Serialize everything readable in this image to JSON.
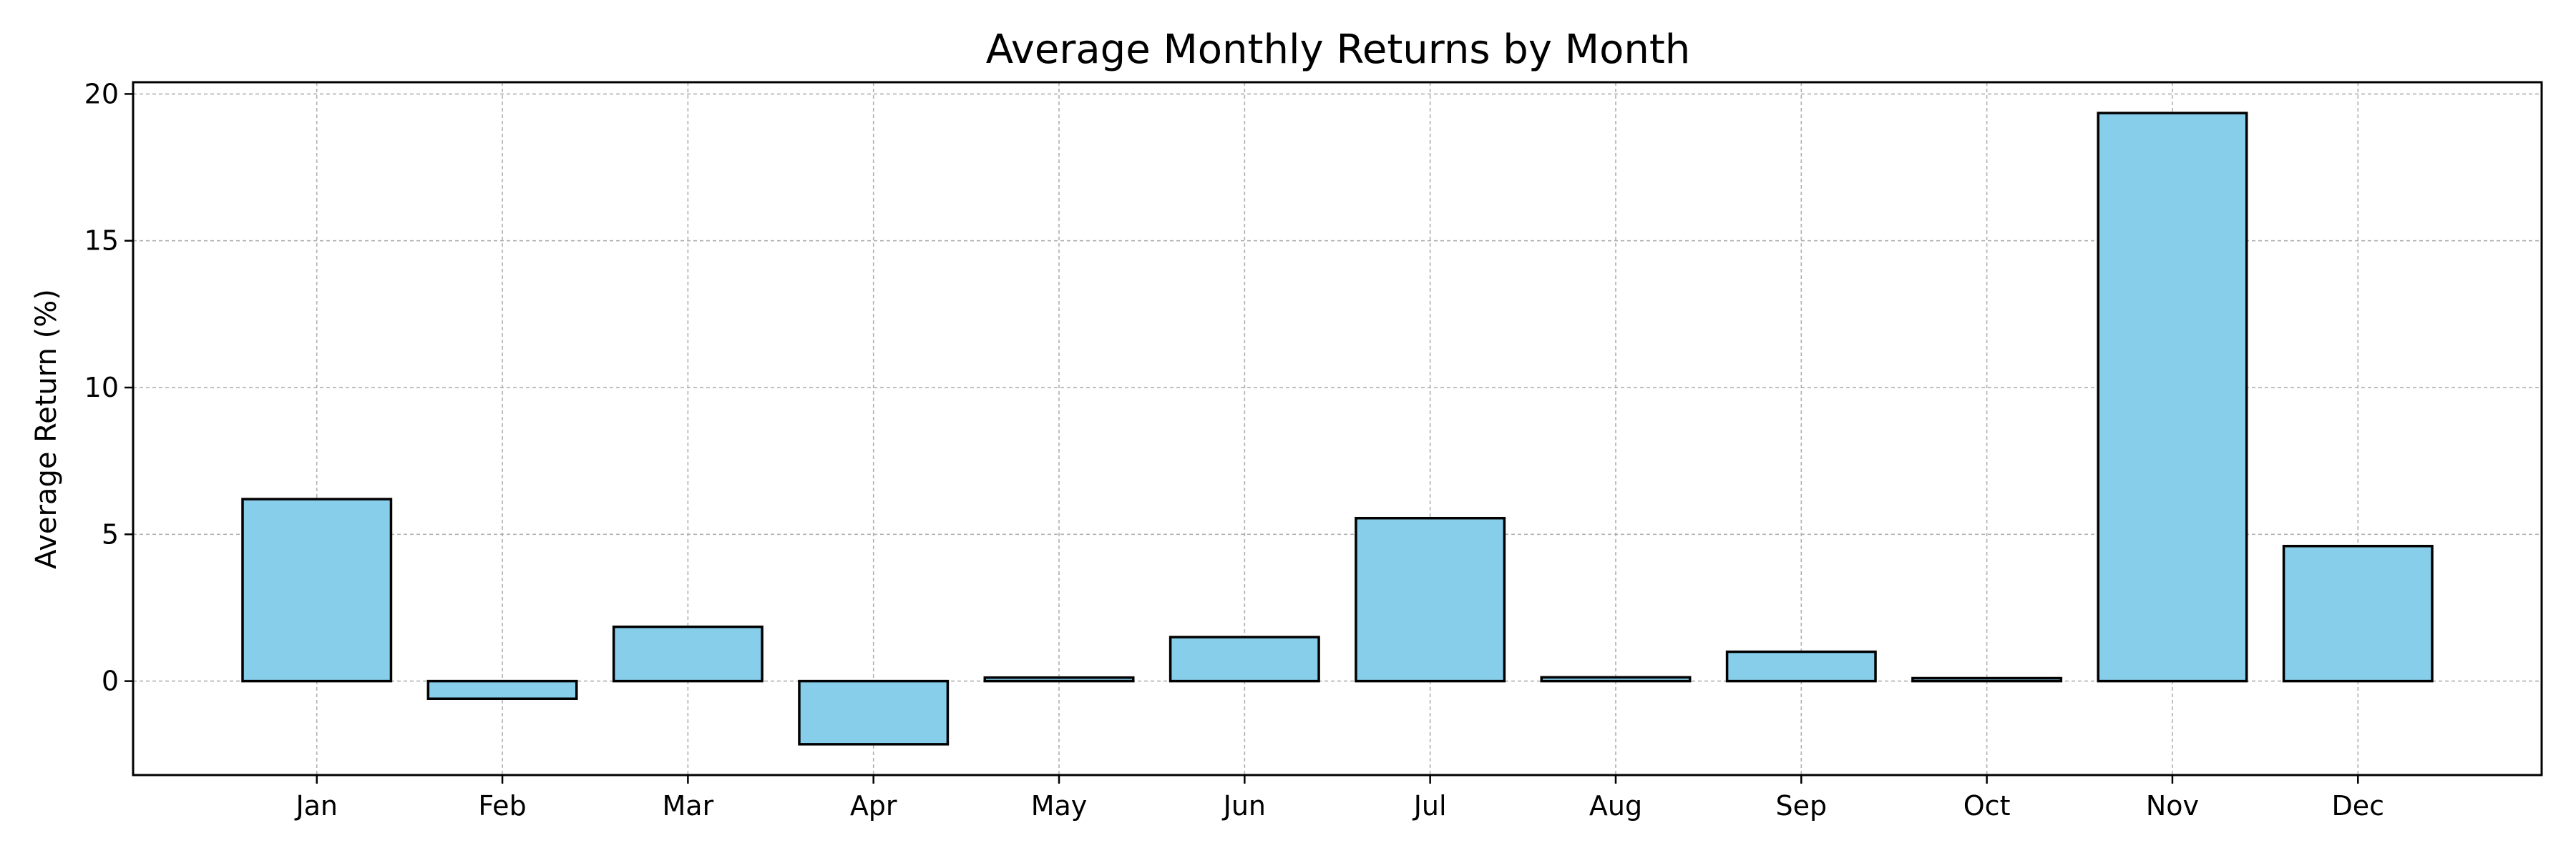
{
  "chart_data": {
    "type": "bar",
    "title": "Average Monthly Returns by Month",
    "xlabel": "",
    "ylabel": "Average Return (%)",
    "categories": [
      "Jan",
      "Feb",
      "Mar",
      "Apr",
      "May",
      "Jun",
      "Jul",
      "Aug",
      "Sep",
      "Oct",
      "Nov",
      "Dec"
    ],
    "values": [
      6.2,
      -0.6,
      1.85,
      -2.15,
      0.12,
      1.5,
      5.55,
      0.13,
      1.0,
      0.1,
      19.35,
      4.6
    ],
    "ylim": [
      -3.2,
      20.4
    ],
    "yticks": [
      0,
      5,
      10,
      15,
      20
    ],
    "grid": true,
    "bar_color": "#87CEEB",
    "edge_color": "#000000"
  }
}
